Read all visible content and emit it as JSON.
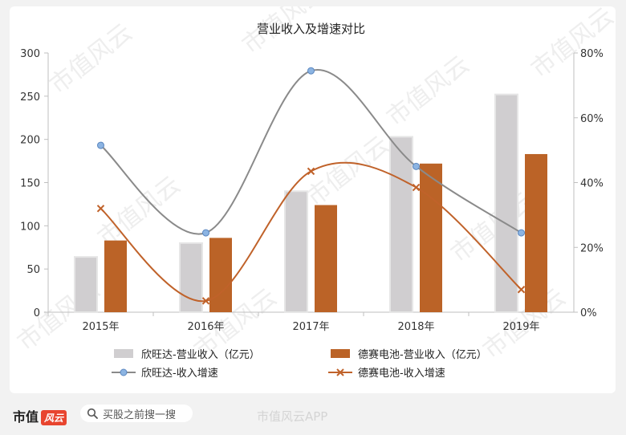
{
  "chart_data": {
    "type": "bar+line",
    "title": "营业收入及增速对比",
    "categories": [
      "2015年",
      "2016年",
      "2017年",
      "2018年",
      "2019年"
    ],
    "y_left": {
      "ticks": [
        "0",
        "50",
        "100",
        "150",
        "200",
        "250",
        "300"
      ],
      "range": [
        0,
        300
      ]
    },
    "y_right": {
      "ticks": [
        "0%",
        "20%",
        "40%",
        "60%",
        "80%"
      ],
      "range": [
        0,
        80
      ]
    },
    "series": [
      {
        "name": "欣旺达-营业收入（亿元）",
        "type": "bar",
        "axis": "left",
        "color": "#d0ced0",
        "values": [
          64,
          80,
          140,
          203,
          252
        ]
      },
      {
        "name": "德赛电池-营业收入（亿元）",
        "type": "bar",
        "axis": "left",
        "color": "#bb6327",
        "values": [
          83,
          86,
          124,
          172,
          183
        ]
      },
      {
        "name": "欣旺达-收入增速",
        "type": "line",
        "axis": "right",
        "color": "#8a8a8a",
        "marker": "circle",
        "marker_color": "#8cb4e2",
        "values": [
          51.5,
          24.5,
          74.5,
          45,
          24.5
        ]
      },
      {
        "name": "德赛电池-收入增速",
        "type": "line",
        "axis": "right",
        "color": "#c0622a",
        "marker": "x",
        "values": [
          32,
          3.5,
          43.5,
          38.5,
          7
        ]
      }
    ]
  },
  "watermark": "市值风云",
  "footer": {
    "brand": "市值",
    "brand_tag": "风云",
    "search_text": "买股之前搜一搜",
    "search_icon": "search-icon",
    "weibo_label": "市值风云APP"
  }
}
